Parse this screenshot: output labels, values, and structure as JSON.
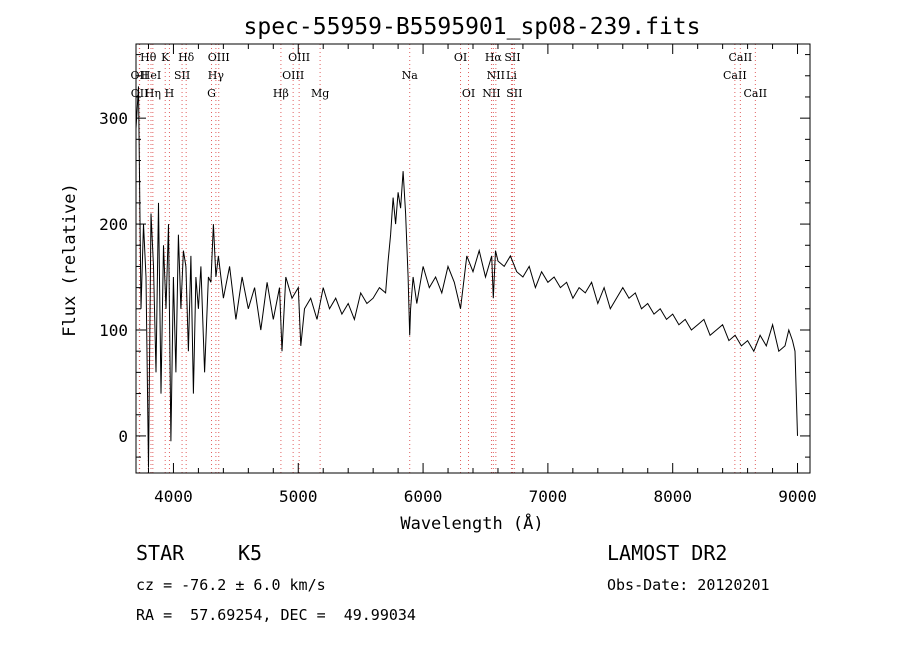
{
  "chart_data": {
    "type": "line",
    "title": "spec-55959-B5595901_sp08-239.fits",
    "xlabel": "Wavelength (Å)",
    "ylabel": "Flux (relative)",
    "xlim": [
      3700,
      9100
    ],
    "ylim": [
      -35,
      370
    ],
    "x_ticks": [
      4000,
      5000,
      6000,
      7000,
      8000,
      9000
    ],
    "y_ticks": [
      0,
      100,
      200,
      300
    ],
    "grid": false,
    "series": [
      {
        "color": "#000000",
        "x": [
          3700,
          3720,
          3740,
          3760,
          3780,
          3800,
          3820,
          3840,
          3860,
          3880,
          3900,
          3920,
          3940,
          3960,
          3980,
          4000,
          4020,
          4040,
          4060,
          4080,
          4100,
          4120,
          4140,
          4160,
          4180,
          4200,
          4220,
          4250,
          4280,
          4300,
          4320,
          4340,
          4360,
          4400,
          4450,
          4500,
          4550,
          4600,
          4650,
          4700,
          4750,
          4800,
          4850,
          4870,
          4900,
          4950,
          5000,
          5020,
          5050,
          5100,
          5150,
          5200,
          5250,
          5300,
          5350,
          5400,
          5450,
          5500,
          5550,
          5600,
          5650,
          5700,
          5720,
          5740,
          5760,
          5780,
          5800,
          5820,
          5840,
          5860,
          5880,
          5893,
          5900,
          5920,
          5950,
          6000,
          6050,
          6100,
          6150,
          6200,
          6250,
          6300,
          6350,
          6400,
          6450,
          6500,
          6550,
          6563,
          6580,
          6600,
          6650,
          6700,
          6750,
          6800,
          6850,
          6900,
          6950,
          7000,
          7050,
          7100,
          7150,
          7200,
          7250,
          7300,
          7350,
          7400,
          7450,
          7500,
          7550,
          7600,
          7650,
          7700,
          7750,
          7800,
          7850,
          7900,
          7950,
          8000,
          8050,
          8100,
          8150,
          8200,
          8250,
          8300,
          8350,
          8400,
          8450,
          8500,
          8550,
          8600,
          8650,
          8700,
          8750,
          8800,
          8850,
          8900,
          8930,
          8960,
          8980,
          9000
        ],
        "values": [
          290,
          330,
          120,
          200,
          150,
          -30,
          210,
          160,
          60,
          220,
          40,
          180,
          120,
          200,
          -5,
          150,
          60,
          190,
          120,
          175,
          160,
          80,
          170,
          40,
          150,
          120,
          160,
          60,
          150,
          145,
          200,
          150,
          170,
          130,
          160,
          110,
          150,
          120,
          140,
          100,
          145,
          110,
          140,
          80,
          150,
          130,
          140,
          85,
          120,
          130,
          110,
          140,
          120,
          130,
          115,
          125,
          110,
          135,
          125,
          130,
          140,
          135,
          165,
          190,
          225,
          200,
          230,
          215,
          250,
          210,
          150,
          95,
          120,
          150,
          125,
          160,
          140,
          150,
          135,
          160,
          145,
          120,
          170,
          155,
          175,
          150,
          170,
          130,
          175,
          165,
          160,
          170,
          155,
          150,
          160,
          140,
          155,
          145,
          150,
          140,
          145,
          130,
          140,
          135,
          145,
          125,
          140,
          120,
          130,
          140,
          130,
          135,
          120,
          125,
          115,
          120,
          110,
          115,
          105,
          110,
          100,
          105,
          110,
          95,
          100,
          105,
          90,
          95,
          85,
          90,
          80,
          95,
          85,
          105,
          80,
          85,
          100,
          90,
          80,
          0
        ]
      }
    ],
    "lines": [
      {
        "label": "Hθ",
        "wl": 3798,
        "row": 0
      },
      {
        "label": "OII",
        "wl": 3727,
        "row": 1
      },
      {
        "label": "OII",
        "wl": 3729,
        "row": 2
      },
      {
        "label": "HeI",
        "wl": 3820,
        "row": 1
      },
      {
        "label": "Hη",
        "wl": 3835,
        "row": 2
      },
      {
        "label": "K",
        "wl": 3934,
        "row": 0
      },
      {
        "label": "SII",
        "wl": 4069,
        "row": 1
      },
      {
        "label": "H",
        "wl": 3968,
        "row": 2
      },
      {
        "label": "Hδ",
        "wl": 4102,
        "row": 0
      },
      {
        "label": "OIII",
        "wl": 4363,
        "row": 0
      },
      {
        "label": "Hγ",
        "wl": 4340,
        "row": 1
      },
      {
        "label": "G",
        "wl": 4305,
        "row": 2
      },
      {
        "label": "Hβ",
        "wl": 4861,
        "row": 2
      },
      {
        "label": "OIII",
        "wl": 5007,
        "row": 0
      },
      {
        "label": "OIII",
        "wl": 4959,
        "row": 1
      },
      {
        "label": "Mg",
        "wl": 5175,
        "row": 2
      },
      {
        "label": "Na",
        "wl": 5893,
        "row": 1
      },
      {
        "label": "OI",
        "wl": 6300,
        "row": 0
      },
      {
        "label": "OI",
        "wl": 6364,
        "row": 2
      },
      {
        "label": "Hα",
        "wl": 6563,
        "row": 0
      },
      {
        "label": "SII",
        "wl": 6716,
        "row": 0
      },
      {
        "label": "NII",
        "wl": 6583,
        "row": 1
      },
      {
        "label": "NII",
        "wl": 6548,
        "row": 2
      },
      {
        "label": "Li",
        "wl": 6708,
        "row": 1
      },
      {
        "label": "SII",
        "wl": 6731,
        "row": 2
      },
      {
        "label": "CaII",
        "wl": 8542,
        "row": 0
      },
      {
        "label": "CaII",
        "wl": 8498,
        "row": 1
      },
      {
        "label": "CaII",
        "wl": 8662,
        "row": 2
      }
    ],
    "line_color": "#e06060"
  },
  "info": {
    "class": "STAR",
    "subclass": "K5",
    "survey": "LAMOST DR2",
    "cz": "cz = -76.2 ± 6.0 km/s",
    "obs_date": "Obs-Date: 20120201",
    "coords": "RA =  57.69254, DEC =  49.99034"
  }
}
